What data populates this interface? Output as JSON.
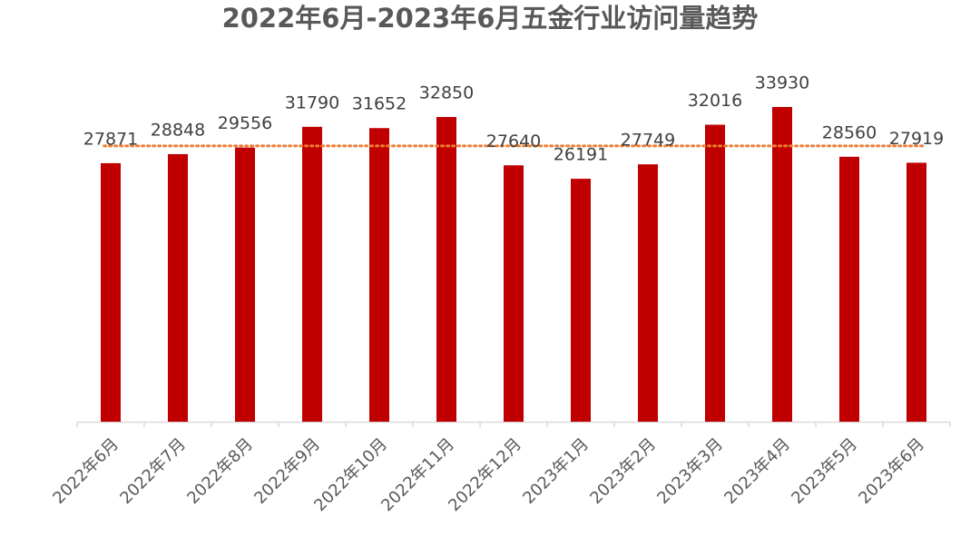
{
  "chart_data": {
    "type": "bar",
    "title": "2022年6月-2023年6月五金行业访问量趋势",
    "categories": [
      "2022年6月",
      "2022年7月",
      "2022年8月",
      "2022年9月",
      "2022年10月",
      "2022年11月",
      "2022年12月",
      "2023年1月",
      "2023年2月",
      "2023年3月",
      "2023年4月",
      "2023年5月",
      "2023年6月"
    ],
    "values": [
      27871,
      28848,
      29556,
      31790,
      31652,
      32850,
      27640,
      26191,
      27749,
      32016,
      33930,
      28560,
      27919
    ],
    "color": "#c00000",
    "ylim": [
      0,
      35000
    ],
    "reference_line": {
      "value": 29736,
      "color": "#ed7d31"
    }
  }
}
